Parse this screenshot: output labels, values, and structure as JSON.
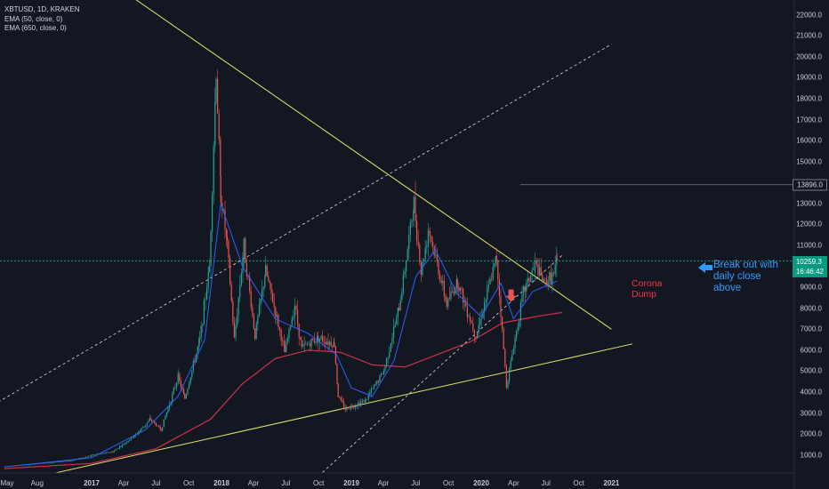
{
  "legend": {
    "title": "XBTUSD, 1D, KRAKEN",
    "ema1": "EMA (50, close, 0)",
    "ema2": "EMA (650, close, 0)"
  },
  "labels": {
    "high_value": "13896.0",
    "price_value": "10259.3",
    "countdown": "16:46:42",
    "annotation_breakout": "Break out with daily close above",
    "annotation_corona": "Corona Dump"
  },
  "colors": {
    "background": "#131722",
    "trendline": "#e4e36b",
    "ema50": "#2962ff",
    "ema650": "#d0314b",
    "up": "#26a69a",
    "down": "#ef5350",
    "dashed": "#ffffff",
    "price_line": "#089981"
  },
  "chart_data": {
    "type": "candlestick",
    "symbol": "XBTUSD",
    "interval": "1D",
    "exchange": "KRAKEN",
    "ylim": [
      0,
      22500
    ],
    "y_ticks": [
      "22000.0",
      "21000.0",
      "20000.0",
      "19000.0",
      "18000.0",
      "17000.0",
      "16000.0",
      "15000.0",
      "14000.0",
      "13000.0",
      "12000.0",
      "11000.0",
      "10000.0",
      "9000.0",
      "8000.0",
      "7000.0",
      "6000.0",
      "5000.0",
      "4000.0",
      "3000.0",
      "2000.0",
      "1000.0"
    ],
    "x_ticks": [
      {
        "label": "May",
        "date": "2016-05-01"
      },
      {
        "label": "Aug",
        "date": "2016-08-01"
      },
      {
        "label": "2017",
        "date": "2017-01-01"
      },
      {
        "label": "Apr",
        "date": "2017-04-01"
      },
      {
        "label": "Jul",
        "date": "2017-07-01"
      },
      {
        "label": "Oct",
        "date": "2017-10-01"
      },
      {
        "label": "2018",
        "date": "2018-01-01"
      },
      {
        "label": "Apr",
        "date": "2018-04-01"
      },
      {
        "label": "Jul",
        "date": "2018-07-01"
      },
      {
        "label": "Oct",
        "date": "2018-10-01"
      },
      {
        "label": "2019",
        "date": "2019-01-01"
      },
      {
        "label": "Apr",
        "date": "2019-04-01"
      },
      {
        "label": "Jul",
        "date": "2019-07-01"
      },
      {
        "label": "Oct",
        "date": "2019-10-01"
      },
      {
        "label": "2020",
        "date": "2020-01-01"
      },
      {
        "label": "Apr",
        "date": "2020-04-01"
      },
      {
        "label": "Jul",
        "date": "2020-07-01"
      },
      {
        "label": "Oct",
        "date": "2020-10-01"
      },
      {
        "label": "2021",
        "date": "2021-01-01"
      }
    ],
    "price_anchors": [
      [
        "2016-05-01",
        450
      ],
      [
        "2016-08-01",
        580
      ],
      [
        "2016-11-01",
        720
      ],
      [
        "2017-01-01",
        980
      ],
      [
        "2017-03-01",
        1150
      ],
      [
        "2017-05-01",
        1900
      ],
      [
        "2017-06-15",
        2700
      ],
      [
        "2017-07-15",
        2200
      ],
      [
        "2017-09-01",
        4700
      ],
      [
        "2017-09-20",
        3700
      ],
      [
        "2017-11-01",
        6500
      ],
      [
        "2017-11-28",
        10000
      ],
      [
        "2017-12-17",
        19300
      ],
      [
        "2017-12-30",
        13500
      ],
      [
        "2018-01-17",
        11000
      ],
      [
        "2018-02-06",
        6500
      ],
      [
        "2018-03-05",
        11000
      ],
      [
        "2018-04-05",
        6700
      ],
      [
        "2018-05-05",
        9800
      ],
      [
        "2018-06-28",
        5900
      ],
      [
        "2018-07-26",
        8200
      ],
      [
        "2018-08-14",
        6100
      ],
      [
        "2018-09-30",
        6600
      ],
      [
        "2018-11-14",
        6300
      ],
      [
        "2018-11-25",
        3800
      ],
      [
        "2018-12-15",
        3200
      ],
      [
        "2019-02-10",
        3600
      ],
      [
        "2019-04-02",
        5000
      ],
      [
        "2019-05-15",
        8000
      ],
      [
        "2019-06-26",
        13000
      ],
      [
        "2019-07-16",
        9700
      ],
      [
        "2019-08-06",
        11800
      ],
      [
        "2019-09-26",
        8200
      ],
      [
        "2019-10-26",
        9300
      ],
      [
        "2019-12-17",
        6700
      ],
      [
        "2020-02-13",
        10400
      ],
      [
        "2020-03-12",
        4300
      ],
      [
        "2020-04-29",
        8800
      ],
      [
        "2020-06-01",
        10100
      ],
      [
        "2020-06-25",
        9200
      ],
      [
        "2020-07-23",
        9600
      ],
      [
        "2020-08-01",
        10259.3
      ]
    ],
    "ema50_anchors": [
      [
        "2016-05-01",
        430
      ],
      [
        "2017-01-01",
        870
      ],
      [
        "2017-06-01",
        2200
      ],
      [
        "2017-09-01",
        3800
      ],
      [
        "2017-11-15",
        6500
      ],
      [
        "2017-12-30",
        13000
      ],
      [
        "2018-03-01",
        10000
      ],
      [
        "2018-06-01",
        7500
      ],
      [
        "2018-09-01",
        6800
      ],
      [
        "2018-11-20",
        5800
      ],
      [
        "2019-01-01",
        4200
      ],
      [
        "2019-03-01",
        3800
      ],
      [
        "2019-05-01",
        5500
      ],
      [
        "2019-07-01",
        9500
      ],
      [
        "2019-08-25",
        10800
      ],
      [
        "2019-10-25",
        8700
      ],
      [
        "2020-01-01",
        7600
      ],
      [
        "2020-02-25",
        9200
      ],
      [
        "2020-04-01",
        7500
      ],
      [
        "2020-05-25",
        8800
      ],
      [
        "2020-08-01",
        9300
      ]
    ],
    "ema650_anchors": [
      [
        "2016-05-01",
        350
      ],
      [
        "2017-01-01",
        600
      ],
      [
        "2017-07-01",
        1300
      ],
      [
        "2017-12-01",
        2700
      ],
      [
        "2018-03-01",
        4400
      ],
      [
        "2018-06-01",
        5600
      ],
      [
        "2018-09-01",
        6000
      ],
      [
        "2018-12-01",
        5900
      ],
      [
        "2019-03-01",
        5300
      ],
      [
        "2019-06-01",
        5200
      ],
      [
        "2019-09-01",
        5800
      ],
      [
        "2019-12-01",
        6400
      ],
      [
        "2020-03-01",
        7300
      ],
      [
        "2020-06-01",
        7600
      ],
      [
        "2020-08-15",
        7800
      ]
    ],
    "high_line": 13896.0,
    "last_price": 10259.3,
    "trendlines": [
      {
        "name": "upper-yellow",
        "points": [
          [
            "2016-01-01",
            28500
          ],
          [
            "2017-12-17",
            19700
          ],
          [
            "2021-01-01",
            7000
          ]
        ]
      },
      {
        "name": "lower-yellow",
        "points": [
          [
            "2016-08-15",
            0
          ],
          [
            "2018-12-15",
            3200
          ],
          [
            "2021-03-01",
            6300
          ]
        ]
      }
    ],
    "channel_lines": [
      {
        "name": "channel-upper",
        "points": [
          [
            "2016-01-01",
            2500
          ],
          [
            "2019-06-26",
            13896
          ],
          [
            "2021-01-01",
            20600
          ]
        ]
      },
      {
        "name": "channel-lower",
        "points": [
          [
            "2018-10-01",
            0
          ],
          [
            "2019-06-01",
            4000
          ],
          [
            "2020-08-20",
            10600
          ]
        ]
      }
    ],
    "annotations": [
      {
        "text": "Break out with daily close above",
        "date": "2020-08-05",
        "value": 9900
      },
      {
        "text": "Corona Dump",
        "date": "2020-03-20",
        "value": 8600
      }
    ]
  }
}
